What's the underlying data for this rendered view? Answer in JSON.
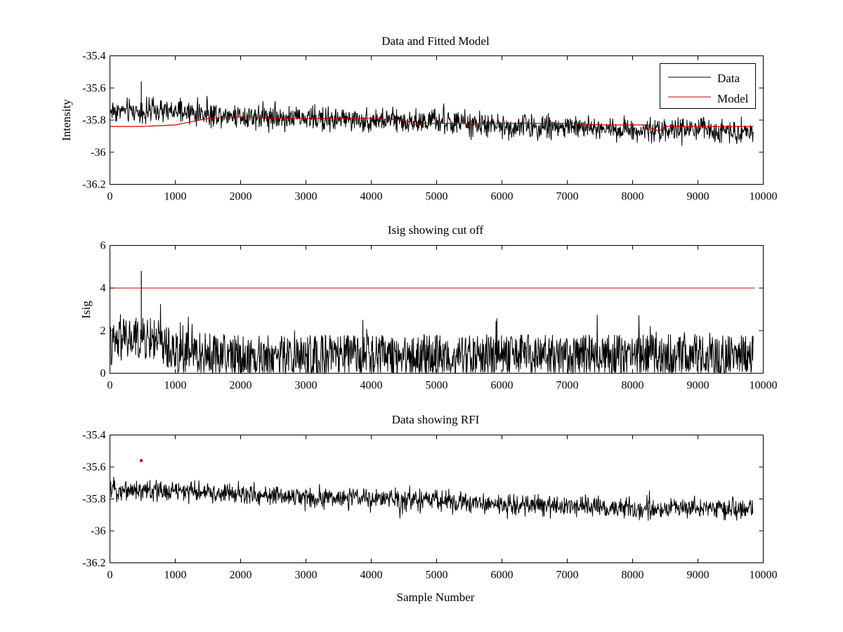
{
  "figure": {
    "background": "#ffffff",
    "data_color": "#000000",
    "model_color": "#cc0000"
  },
  "chart_data": [
    {
      "type": "line",
      "title": "Data and Fitted Model",
      "xlabel": "",
      "ylabel": "Intensity",
      "xlim": [
        0,
        10000
      ],
      "ylim": [
        -36.2,
        -35.4
      ],
      "xticks": [
        0,
        1000,
        2000,
        3000,
        4000,
        5000,
        6000,
        7000,
        8000,
        9000,
        10000
      ],
      "yticks": [
        -35.4,
        -35.6,
        -35.8,
        -36,
        -36.2
      ],
      "x_range_of_samples": [
        0,
        9850
      ],
      "grid": false,
      "legend": {
        "location": "top-right",
        "entries": [
          "Data",
          "Model"
        ]
      },
      "series": [
        {
          "name": "Data",
          "kind": "noisy-signal",
          "color": "#000000",
          "trend": {
            "x": [
              0,
              1000,
              2000,
              3000,
              4000,
              5000,
              6000,
              7000,
              8000,
              9000,
              9850
            ],
            "y": [
              -35.74,
              -35.75,
              -35.77,
              -35.79,
              -35.8,
              -35.81,
              -35.84,
              -35.84,
              -35.86,
              -35.86,
              -35.87
            ]
          },
          "noise_amplitude": 0.07,
          "peaks": [
            {
              "x": 480,
              "y": -35.56
            }
          ]
        },
        {
          "name": "Model",
          "kind": "line",
          "color": "#cc0000",
          "x": [
            0,
            500,
            1000,
            1500,
            2000,
            2500,
            3000,
            3500,
            4000,
            4500,
            4650,
            4700,
            4800,
            5000,
            5450,
            5500,
            5550,
            6000,
            6500,
            7000,
            7500,
            8000,
            8200,
            8250,
            8300,
            8400,
            8500,
            9000,
            9500,
            9850
          ],
          "y": [
            -35.84,
            -35.84,
            -35.83,
            -35.79,
            -35.78,
            -35.79,
            -35.79,
            -35.79,
            -35.79,
            -35.8,
            -35.82,
            -35.83,
            -35.82,
            -35.82,
            -35.82,
            -35.84,
            -35.82,
            -35.82,
            -35.82,
            -35.82,
            -35.83,
            -35.83,
            -35.83,
            -35.86,
            -35.85,
            -35.87,
            -35.84,
            -35.84,
            -35.84,
            -35.84
          ]
        }
      ]
    },
    {
      "type": "line",
      "title": "Isig showing cut off",
      "xlabel": "",
      "ylabel": "Isig",
      "xlim": [
        0,
        10000
      ],
      "ylim": [
        0,
        6
      ],
      "xticks": [
        0,
        1000,
        2000,
        3000,
        4000,
        5000,
        6000,
        7000,
        8000,
        9000,
        10000
      ],
      "yticks": [
        0,
        2,
        4,
        6
      ],
      "x_range_of_samples": [
        0,
        9850
      ],
      "grid": false,
      "series": [
        {
          "kind": "noisy-signal",
          "color": "#000000",
          "trend": {
            "x": [
              0,
              300,
              700,
              1000,
              2000,
              5000,
              9850
            ],
            "y": [
              1.3,
              1.6,
              1.6,
              1.0,
              0.8,
              0.8,
              0.85
            ]
          },
          "noise_amplitude": 1.0,
          "peaks": [
            {
              "x": 480,
              "y": 4.8
            }
          ]
        },
        {
          "kind": "threshold",
          "color": "#cc0000",
          "y": 4
        }
      ]
    },
    {
      "type": "line",
      "title": "Data showing RFI",
      "xlabel": "Sample Number",
      "ylabel": "",
      "xlim": [
        0,
        10000
      ],
      "ylim": [
        -36.2,
        -35.4
      ],
      "xticks": [
        0,
        1000,
        2000,
        3000,
        4000,
        5000,
        6000,
        7000,
        8000,
        9000,
        10000
      ],
      "yticks": [
        -35.4,
        -35.6,
        -35.8,
        -36,
        -36.2
      ],
      "x_range_of_samples": [
        0,
        9850
      ],
      "grid": false,
      "series": [
        {
          "kind": "noisy-signal",
          "color": "#000000",
          "trend": {
            "x": [
              0,
              1000,
              2000,
              3000,
              4000,
              5000,
              6000,
              7000,
              8000,
              9000,
              9850
            ],
            "y": [
              -35.74,
              -35.75,
              -35.77,
              -35.79,
              -35.8,
              -35.81,
              -35.84,
              -35.84,
              -35.86,
              -35.86,
              -35.87
            ]
          },
          "noise_amplitude": 0.06
        },
        {
          "kind": "marker",
          "color": "#cc0000",
          "x": 480,
          "y": -35.56
        }
      ]
    }
  ]
}
